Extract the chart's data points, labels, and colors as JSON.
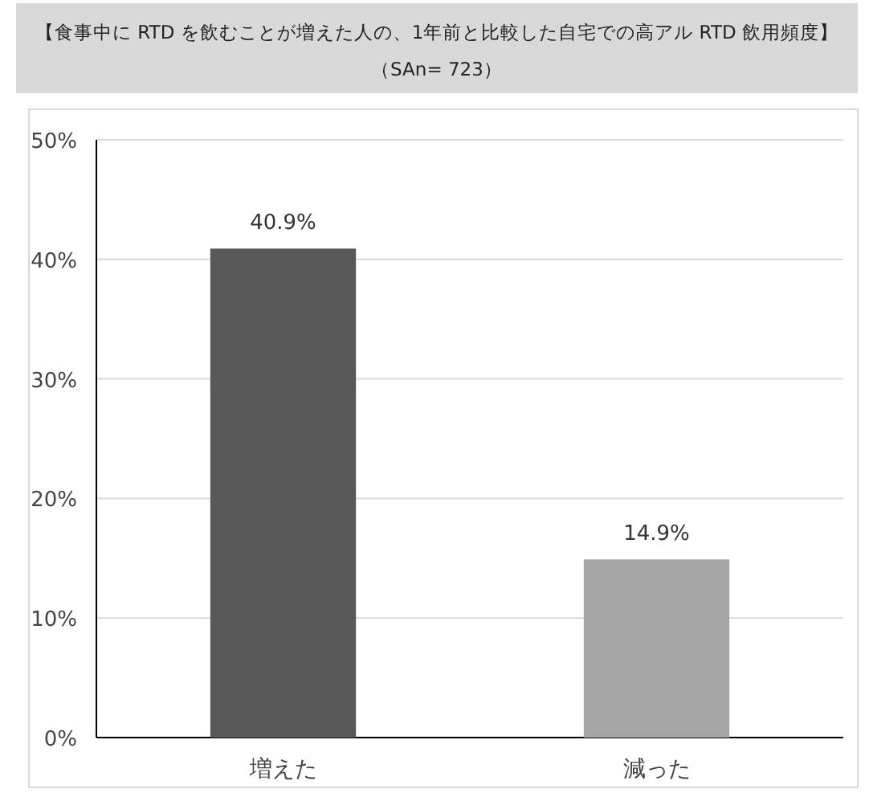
{
  "chart_data": {
    "type": "bar",
    "title": "【食事中に RTD を飲むことが増えた人の、1年前と比較した自宅での高アル RTD 飲用頻度】",
    "subtitle": "（SAn= 723）",
    "categories": [
      "増えた",
      "減った"
    ],
    "values": [
      40.9,
      14.9
    ],
    "colors": [
      "#595959",
      "#a6a6a6"
    ],
    "value_labels": [
      "40.9%",
      "14.9%"
    ],
    "ylim": [
      0,
      50
    ],
    "yticks": [
      {
        "value": 0,
        "label": "0%"
      },
      {
        "value": 10,
        "label": "10%"
      },
      {
        "value": 20,
        "label": "20%"
      },
      {
        "value": 30,
        "label": "30%"
      },
      {
        "value": 40,
        "label": "40%"
      },
      {
        "value": 50,
        "label": "50%"
      }
    ],
    "grid": "y"
  }
}
